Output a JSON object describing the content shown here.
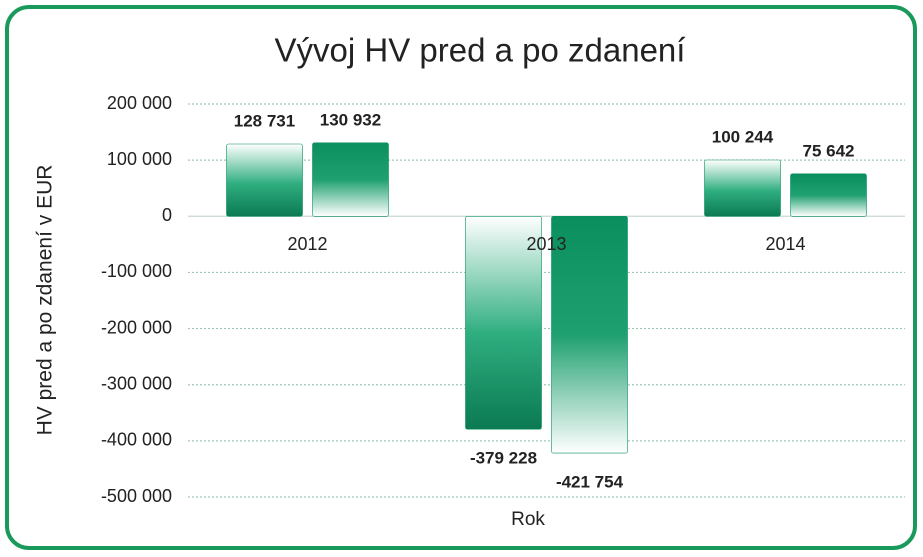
{
  "chart_data": {
    "type": "bar",
    "title": "Vývoj HV pred a po zdanení",
    "x_label": "Rok",
    "y_label": "HV pred a po zdanení v EUR",
    "categories": [
      "2012",
      "2013",
      "2014"
    ],
    "series": [
      {
        "color": "#0b8f5f",
        "values": [
          128731,
          -379228,
          100244
        ],
        "value_labels": [
          "128 731",
          "-379 228",
          "100 244"
        ]
      },
      {
        "color": "#0b8f5f",
        "values": [
          130932,
          -421754,
          75642
        ],
        "value_labels": [
          "130 932",
          "-421 754",
          "75 642"
        ]
      }
    ],
    "ylim": [
      -500000,
      200000
    ],
    "yticks": [
      {
        "value": -500000,
        "label": "-500 000"
      },
      {
        "value": -400000,
        "label": "-400 000"
      },
      {
        "value": -300000,
        "label": "-300 000"
      },
      {
        "value": -200000,
        "label": "-200 000"
      },
      {
        "value": -100000,
        "label": "-100 000"
      },
      0,
      {
        "value": 100000,
        "label": "100 000"
      },
      {
        "value": 200000,
        "label": "200 000"
      }
    ],
    "grid": true
  }
}
